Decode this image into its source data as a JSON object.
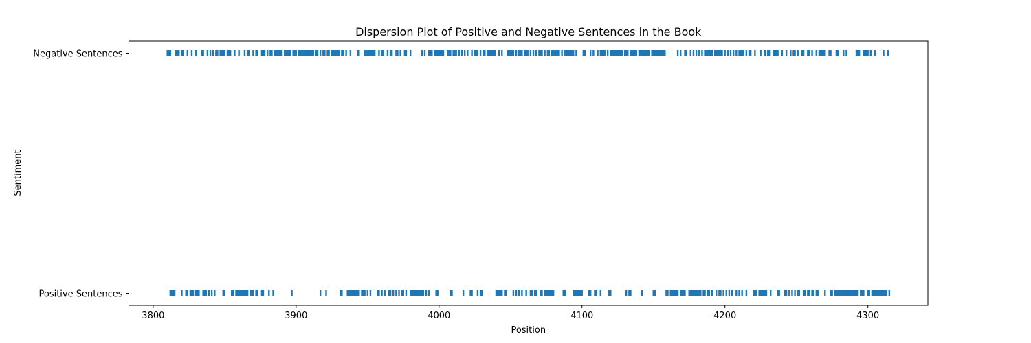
{
  "chart_data": {
    "type": "scatter",
    "title": "Dispersion Plot of Positive and Negative Sentences in the Book",
    "xlabel": "Position",
    "ylabel": "Sentiment",
    "xlim": [
      3783,
      4342
    ],
    "x_ticks": [
      3800,
      3900,
      4000,
      4100,
      4200,
      4300
    ],
    "x_tick_labels": [
      "3800",
      "3900",
      "4000",
      "4100",
      "4200",
      "4300"
    ],
    "categories": [
      "Positive Sentences",
      "Negative Sentences"
    ],
    "grid": false,
    "marker": "|",
    "color": "#1f77b4",
    "series": [
      {
        "name": "Negative Sentences",
        "category": "Negative Sentences",
        "x": [
          3810,
          3811,
          3812,
          3816,
          3817,
          3818,
          3820,
          3821,
          3824,
          3827,
          3830,
          3834,
          3835,
          3838,
          3840,
          3842,
          3844,
          3845,
          3847,
          3848,
          3849,
          3850,
          3852,
          3853,
          3854,
          3857,
          3860,
          3864,
          3866,
          3867,
          3870,
          3872,
          3873,
          3876,
          3877,
          3878,
          3880,
          3882,
          3883,
          3885,
          3886,
          3887,
          3888,
          3889,
          3890,
          3892,
          3893,
          3894,
          3895,
          3896,
          3898,
          3899,
          3900,
          3902,
          3903,
          3904,
          3905,
          3906,
          3907,
          3908,
          3909,
          3910,
          3911,
          3912,
          3914,
          3915,
          3917,
          3919,
          3920,
          3922,
          3923,
          3925,
          3926,
          3927,
          3928,
          3929,
          3930,
          3932,
          3933,
          3935,
          3938,
          3943,
          3944,
          3948,
          3949,
          3950,
          3951,
          3952,
          3953,
          3954,
          3955,
          3958,
          3960,
          3961,
          3964,
          3966,
          3967,
          3970,
          3971,
          3973,
          3976,
          3977,
          3980,
          3988,
          3990,
          3993,
          3994,
          3995,
          3997,
          3998,
          3999,
          4000,
          4001,
          4002,
          4003,
          4006,
          4007,
          4008,
          4010,
          4011,
          4012,
          4014,
          4016,
          4018,
          4020,
          4023,
          4025,
          4026,
          4027,
          4029,
          4031,
          4032,
          4034,
          4035,
          4036,
          4037,
          4038,
          4039,
          4042,
          4044,
          4048,
          4049,
          4050,
          4051,
          4052,
          4054,
          4056,
          4057,
          4058,
          4060,
          4061,
          4062,
          4064,
          4066,
          4068,
          4070,
          4071,
          4072,
          4074,
          4076,
          4077,
          4079,
          4080,
          4081,
          4082,
          4083,
          4084,
          4086,
          4088,
          4089,
          4090,
          4091,
          4092,
          4093,
          4094,
          4096,
          4101,
          4102,
          4106,
          4108,
          4111,
          4113,
          4114,
          4115,
          4116,
          4118,
          4120,
          4121,
          4122,
          4123,
          4124,
          4125,
          4126,
          4127,
          4128,
          4130,
          4131,
          4132,
          4134,
          4135,
          4136,
          4137,
          4138,
          4140,
          4141,
          4142,
          4143,
          4144,
          4145,
          4146,
          4147,
          4149,
          4150,
          4151,
          4152,
          4153,
          4154,
          4155,
          4156,
          4157,
          4158,
          4167,
          4169,
          4172,
          4173,
          4176,
          4178,
          4180,
          4182,
          4184,
          4186,
          4187,
          4188,
          4189,
          4190,
          4191,
          4193,
          4194,
          4195,
          4196,
          4197,
          4198,
          4200,
          4202,
          4204,
          4206,
          4208,
          4210,
          4211,
          4212,
          4213,
          4215,
          4217,
          4218,
          4221,
          4225,
          4228,
          4230,
          4231,
          4234,
          4235,
          4236,
          4237,
          4240,
          4243,
          4246,
          4248,
          4249,
          4251,
          4254,
          4255,
          4258,
          4259,
          4261,
          4264,
          4266,
          4267,
          4268,
          4269,
          4270,
          4273,
          4274,
          4278,
          4279,
          4283,
          4285,
          4292,
          4293,
          4294,
          4297,
          4298,
          4299,
          4300,
          4302,
          4305,
          4311,
          4314
        ]
      },
      {
        "name": "Positive Sentences",
        "category": "Positive Sentences",
        "x": [
          3812,
          3813,
          3814,
          3815,
          3820,
          3823,
          3824,
          3826,
          3827,
          3828,
          3830,
          3831,
          3832,
          3835,
          3836,
          3837,
          3839,
          3841,
          3843,
          3849,
          3850,
          3855,
          3856,
          3858,
          3859,
          3860,
          3861,
          3862,
          3863,
          3864,
          3865,
          3866,
          3868,
          3869,
          3870,
          3872,
          3873,
          3876,
          3877,
          3881,
          3884,
          3897,
          3917,
          3921,
          3931,
          3932,
          3936,
          3937,
          3938,
          3939,
          3940,
          3941,
          3942,
          3943,
          3944,
          3946,
          3947,
          3948,
          3950,
          3952,
          3957,
          3958,
          3960,
          3962,
          3965,
          3966,
          3968,
          3970,
          3972,
          3974,
          3975,
          3977,
          3980,
          3981,
          3982,
          3983,
          3984,
          3985,
          3986,
          3987,
          3988,
          3989,
          3991,
          3993,
          3998,
          3999,
          4008,
          4009,
          4017,
          4022,
          4023,
          4027,
          4029,
          4030,
          4040,
          4041,
          4042,
          4043,
          4044,
          4046,
          4047,
          4052,
          4054,
          4056,
          4058,
          4061,
          4064,
          4065,
          4067,
          4068,
          4071,
          4072,
          4074,
          4075,
          4076,
          4077,
          4078,
          4079,
          4080,
          4087,
          4088,
          4094,
          4095,
          4096,
          4097,
          4098,
          4099,
          4100,
          4105,
          4106,
          4109,
          4110,
          4113,
          4119,
          4120,
          4131,
          4133,
          4134,
          4142,
          4150,
          4151,
          4159,
          4160,
          4162,
          4163,
          4164,
          4165,
          4166,
          4167,
          4169,
          4170,
          4171,
          4172,
          4175,
          4176,
          4177,
          4178,
          4179,
          4180,
          4181,
          4182,
          4183,
          4185,
          4186,
          4188,
          4189,
          4191,
          4194,
          4196,
          4197,
          4199,
          4201,
          4203,
          4205,
          4208,
          4210,
          4212,
          4215,
          4220,
          4221,
          4222,
          4224,
          4225,
          4226,
          4227,
          4228,
          4229,
          4232,
          4237,
          4238,
          4242,
          4243,
          4245,
          4247,
          4249,
          4251,
          4252,
          4255,
          4256,
          4258,
          4259,
          4261,
          4262,
          4264,
          4265,
          4270,
          4274,
          4275,
          4277,
          4278,
          4279,
          4280,
          4281,
          4282,
          4283,
          4284,
          4285,
          4286,
          4287,
          4288,
          4289,
          4290,
          4291,
          4292,
          4293,
          4295,
          4296,
          4297,
          4300,
          4301,
          4303,
          4304,
          4305,
          4306,
          4307,
          4308,
          4309,
          4310,
          4311,
          4312,
          4313,
          4315
        ]
      }
    ]
  }
}
